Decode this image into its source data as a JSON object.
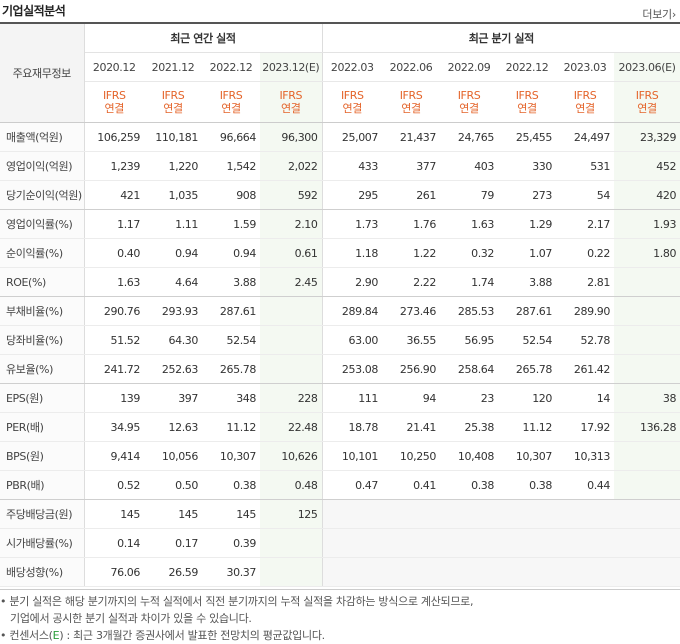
{
  "header": {
    "title": "기업실적분석",
    "more_label": "더보기",
    "more_icon": "chevron-right"
  },
  "table": {
    "corner_label": "주요재무정보",
    "groups": {
      "annual": "최근 연간 실적",
      "quarterly": "최근 분기 실적"
    },
    "periods": [
      "2020.12",
      "2021.12",
      "2022.12",
      "2023.12(E)",
      "2022.03",
      "2022.06",
      "2022.09",
      "2022.12",
      "2023.03",
      "2023.06(E)"
    ],
    "ifrs": [
      "IFRS",
      "IFRS",
      "IFRS",
      "IFRS",
      "IFRS",
      "IFRS",
      "IFRS",
      "IFRS",
      "IFRS",
      "IFRS"
    ],
    "basis": [
      "연결",
      "연결",
      "연결",
      "연결",
      "연결",
      "연결",
      "연결",
      "연결",
      "연결",
      "연결"
    ],
    "rows": [
      {
        "label": "매출액(억원)",
        "values": [
          "106,259",
          "110,181",
          "96,664",
          "96,300",
          "25,007",
          "21,437",
          "24,765",
          "25,455",
          "24,497",
          "23,329"
        ]
      },
      {
        "label": "영업이익(억원)",
        "values": [
          "1,239",
          "1,220",
          "1,542",
          "2,022",
          "433",
          "377",
          "403",
          "330",
          "531",
          "452"
        ]
      },
      {
        "label": "당기순이익(억원)",
        "values": [
          "421",
          "1,035",
          "908",
          "592",
          "295",
          "261",
          "79",
          "273",
          "54",
          "420"
        ]
      },
      {
        "label": "영업이익률(%)",
        "values": [
          "1.17",
          "1.11",
          "1.59",
          "2.10",
          "1.73",
          "1.76",
          "1.63",
          "1.29",
          "2.17",
          "1.93"
        ]
      },
      {
        "label": "순이익률(%)",
        "values": [
          "0.40",
          "0.94",
          "0.94",
          "0.61",
          "1.18",
          "1.22",
          "0.32",
          "1.07",
          "0.22",
          "1.80"
        ]
      },
      {
        "label": "ROE(%)",
        "values": [
          "1.63",
          "4.64",
          "3.88",
          "2.45",
          "2.90",
          "2.22",
          "1.74",
          "3.88",
          "2.81",
          ""
        ]
      },
      {
        "label": "부채비율(%)",
        "values": [
          "290.76",
          "293.93",
          "287.61",
          "",
          "289.84",
          "273.46",
          "285.53",
          "287.61",
          "289.90",
          ""
        ]
      },
      {
        "label": "당좌비율(%)",
        "values": [
          "51.52",
          "64.30",
          "52.54",
          "",
          "63.00",
          "36.55",
          "56.95",
          "52.54",
          "52.78",
          ""
        ]
      },
      {
        "label": "유보율(%)",
        "values": [
          "241.72",
          "252.63",
          "265.78",
          "",
          "253.08",
          "256.90",
          "258.64",
          "265.78",
          "261.42",
          ""
        ]
      },
      {
        "label": "EPS(원)",
        "values": [
          "139",
          "397",
          "348",
          "228",
          "111",
          "94",
          "23",
          "120",
          "14",
          "38"
        ]
      },
      {
        "label": "PER(배)",
        "values": [
          "34.95",
          "12.63",
          "11.12",
          "22.48",
          "18.78",
          "21.41",
          "25.38",
          "11.12",
          "17.92",
          "136.28"
        ]
      },
      {
        "label": "BPS(원)",
        "values": [
          "9,414",
          "10,056",
          "10,307",
          "10,626",
          "10,101",
          "10,250",
          "10,408",
          "10,307",
          "10,313",
          ""
        ]
      },
      {
        "label": "PBR(배)",
        "values": [
          "0.52",
          "0.50",
          "0.38",
          "0.48",
          "0.47",
          "0.41",
          "0.38",
          "0.38",
          "0.44",
          ""
        ]
      },
      {
        "label": "주당배당금(원)",
        "values": [
          "145",
          "145",
          "145",
          "125",
          "",
          "",
          "",
          "",
          "",
          ""
        ]
      },
      {
        "label": "시가배당률(%)",
        "values": [
          "0.14",
          "0.17",
          "0.39",
          "",
          "",
          "",
          "",
          "",
          "",
          ""
        ]
      },
      {
        "label": "배당성향(%)",
        "values": [
          "76.06",
          "26.59",
          "30.37",
          "",
          "",
          "",
          "",
          "",
          "",
          ""
        ]
      }
    ]
  },
  "notes": {
    "line1": "• 분기 실적은 해당 분기까지의 누적 실적에서 직전 분기까지의 누적 실적을 차감하는 방식으로 계산되므로,",
    "line2": "기업에서 공시한 분기 실적과 차이가 있을 수 있습니다.",
    "line3_prefix": "• 컨센서스(",
    "line3_mark": "E",
    "line3_suffix": ") : 최근 3개월간 증권사에서 발표한 전망치의 평균값입니다."
  },
  "colors": {
    "ifrs_text": "#e4642a",
    "estimate_bg": "#f4f9f2",
    "estimate_mark": "#2a9d3a",
    "label_bg": "#f4f4f4"
  }
}
